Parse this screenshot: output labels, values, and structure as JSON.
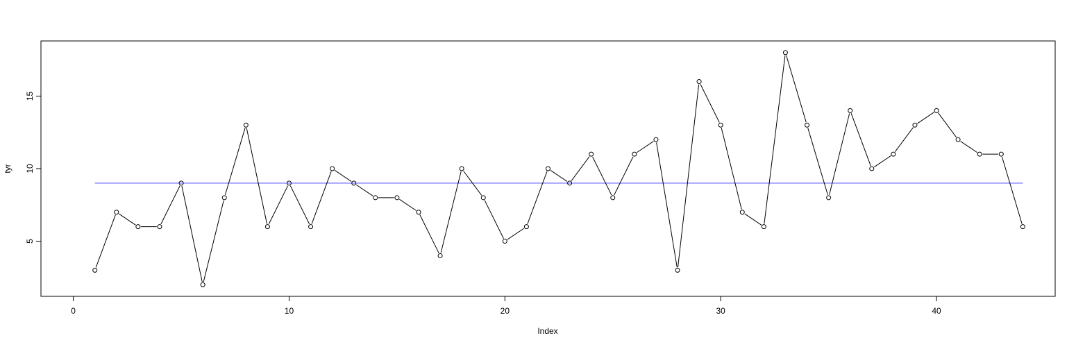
{
  "chart_data": {
    "type": "line",
    "title": "",
    "xlabel": "Index",
    "ylabel": "tyr",
    "xlim": [
      -1.5,
      45.5
    ],
    "ylim": [
      1.2,
      18.8
    ],
    "x_ticks": [
      0,
      10,
      20,
      30,
      40
    ],
    "y_ticks": [
      5,
      10,
      15
    ],
    "grid": false,
    "legend": "none",
    "series": [
      {
        "x": [
          1,
          2,
          3,
          4,
          5,
          6,
          7,
          8,
          9,
          10,
          11,
          12,
          13,
          14,
          15,
          16,
          17,
          18,
          19,
          20,
          21,
          22,
          23,
          24,
          25,
          26,
          27,
          28,
          29,
          30,
          31,
          32,
          33,
          34,
          35,
          36,
          37,
          38,
          39,
          40,
          41,
          42,
          43,
          44
        ],
        "values": [
          3,
          7,
          6,
          6,
          9,
          2,
          8,
          13,
          6,
          9,
          6,
          10,
          9,
          8,
          8,
          7,
          4,
          10,
          8,
          5,
          6,
          10,
          9,
          11,
          8,
          11,
          12,
          3,
          16,
          13,
          7,
          6,
          18,
          13,
          8,
          14,
          10,
          11,
          13,
          14,
          12,
          11,
          11,
          6
        ],
        "color": "#000000",
        "marker": "open-circle"
      }
    ],
    "reference_line": {
      "y": 9,
      "x_from": 1,
      "x_to": 44,
      "color": "#6b6bff"
    }
  }
}
